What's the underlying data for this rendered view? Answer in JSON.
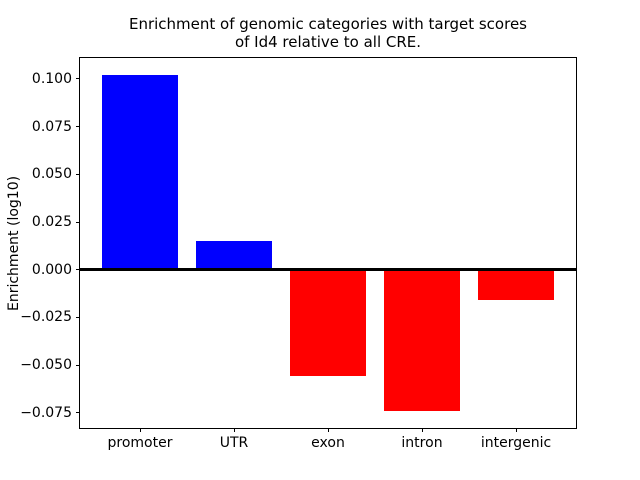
{
  "chart_data": {
    "type": "bar",
    "title": "Enrichment of genomic categories with target scores\nof Id4 relative to all CRE.",
    "title_lines": [
      "Enrichment of genomic categories with target scores",
      "of Id4 relative to all CRE."
    ],
    "xlabel": "",
    "ylabel": "Enrichment (log10)",
    "categories": [
      "promoter",
      "UTR",
      "exon",
      "intron",
      "intergenic"
    ],
    "values": [
      0.1022,
      0.0153,
      -0.0555,
      -0.0742,
      -0.0159
    ],
    "positive_color": "#0000ff",
    "negative_color": "#ff0000",
    "axis_color": "#000000",
    "background_color": "#ffffff",
    "ylim": [
      -0.083,
      0.111
    ],
    "yticks": [
      0.1,
      0.075,
      0.05,
      0.025,
      0.0,
      -0.025,
      -0.05,
      -0.075
    ],
    "ytick_labels": [
      "0.100",
      "0.075",
      "0.050",
      "0.025",
      "0.000",
      "−0.025",
      "−0.050",
      "−0.075"
    ],
    "zero_line": true,
    "grid": false,
    "legend": "none"
  }
}
